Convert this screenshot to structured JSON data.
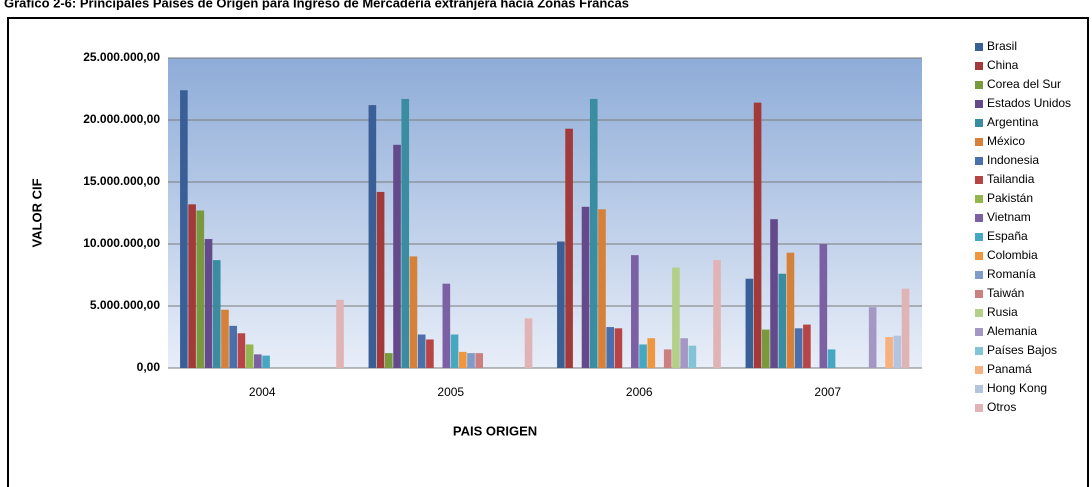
{
  "chart_data": {
    "type": "bar",
    "title": "Gráfico 2-6: Principales Países de Origen para Ingreso de Mercadería extranjera hacia Zonas Francas",
    "y_label": "VALOR CIF",
    "x_label": "PAIS ORIGEN",
    "categories": [
      "2004",
      "2005",
      "2006",
      "2007"
    ],
    "ylim": [
      0,
      25000000
    ],
    "yticks": [
      {
        "value": 0,
        "label": "0,00"
      },
      {
        "value": 5000000,
        "label": "5.000.000,00"
      },
      {
        "value": 10000000,
        "label": "10.000.000,00"
      },
      {
        "value": 15000000,
        "label": "15.000.000,00"
      },
      {
        "value": 20000000,
        "label": "20.000.000,00"
      },
      {
        "value": 25000000,
        "label": "25.000.000,00"
      }
    ],
    "grid": true,
    "legend": "right",
    "series": [
      {
        "name": "Brasil",
        "color": "#3a5f96",
        "values": [
          22400000,
          21200000,
          10200000,
          7200000
        ]
      },
      {
        "name": "China",
        "color": "#a33a3a",
        "values": [
          13200000,
          14200000,
          19300000,
          21400000
        ]
      },
      {
        "name": "Corea del Sur",
        "color": "#789a3c",
        "values": [
          12700000,
          1200000,
          0,
          3100000
        ]
      },
      {
        "name": "Estados Unidos",
        "color": "#644a8a",
        "values": [
          10400000,
          18000000,
          13000000,
          12000000
        ]
      },
      {
        "name": "Argentina",
        "color": "#3a8ca0",
        "values": [
          8700000,
          21700000,
          21700000,
          7600000
        ]
      },
      {
        "name": "México",
        "color": "#d6813a",
        "values": [
          4700000,
          9000000,
          12800000,
          9300000
        ]
      },
      {
        "name": "Indonesia",
        "color": "#4a6fab",
        "values": [
          3400000,
          2700000,
          3300000,
          3200000
        ]
      },
      {
        "name": "Tailandia",
        "color": "#b84545",
        "values": [
          2800000,
          2300000,
          3200000,
          3500000
        ]
      },
      {
        "name": "Pakistán",
        "color": "#93b64f",
        "values": [
          1900000,
          0,
          0,
          0
        ]
      },
      {
        "name": "Vietnam",
        "color": "#7b60a3",
        "values": [
          1100000,
          6800000,
          9100000,
          10000000
        ]
      },
      {
        "name": "España",
        "color": "#46a7c0",
        "values": [
          1000000,
          2700000,
          1900000,
          1500000
        ]
      },
      {
        "name": "Colombia",
        "color": "#f0963f",
        "values": [
          0,
          1300000,
          2400000,
          0
        ]
      },
      {
        "name": "Romanía",
        "color": "#7f9bc9",
        "values": [
          0,
          1200000,
          0,
          0
        ]
      },
      {
        "name": "Taiwán",
        "color": "#cc7f7f",
        "values": [
          0,
          1200000,
          1500000,
          0
        ]
      },
      {
        "name": "Rusia",
        "color": "#b3cf88",
        "values": [
          0,
          0,
          8100000,
          0
        ]
      },
      {
        "name": "Alemania",
        "color": "#a597c4",
        "values": [
          0,
          0,
          2400000,
          4900000
        ]
      },
      {
        "name": "Países Bajos",
        "color": "#82c3d6",
        "values": [
          0,
          0,
          1800000,
          0
        ]
      },
      {
        "name": "Panamá",
        "color": "#f7b07e",
        "values": [
          0,
          0,
          0,
          2500000
        ]
      },
      {
        "name": "Hong Kong",
        "color": "#b4c3de",
        "values": [
          0,
          0,
          0,
          2600000
        ]
      },
      {
        "name": "Otros",
        "color": "#e0b4b4",
        "values": [
          5500000,
          4000000,
          8700000,
          6400000
        ]
      }
    ]
  }
}
